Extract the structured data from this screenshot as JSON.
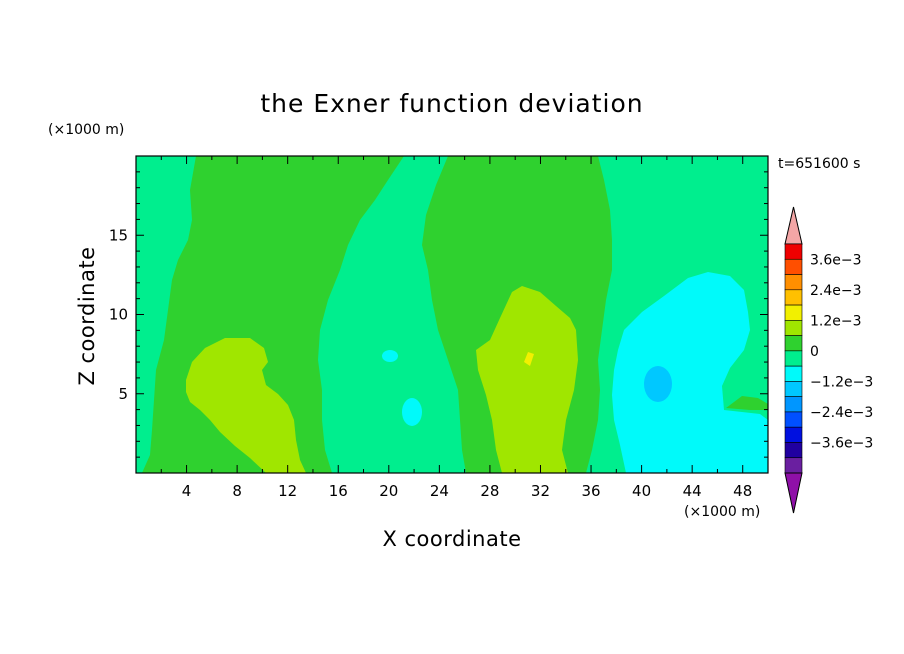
{
  "chart_data": {
    "type": "contour",
    "title": "the Exner function deviation",
    "xlabel": "X coordinate",
    "ylabel": "Z coordinate",
    "x_unit": "(×1000 m)",
    "y_unit": "(×1000 m)",
    "time_label": "t=651600 s",
    "xlim": [
      0,
      50
    ],
    "ylim": [
      0,
      20
    ],
    "xticks": [
      4,
      8,
      12,
      16,
      20,
      24,
      28,
      32,
      36,
      40,
      44,
      48
    ],
    "yticks": [
      5,
      10,
      15
    ],
    "colorbar": {
      "levels": [
        -0.0042,
        -0.0036,
        -0.003,
        -0.0024,
        -0.0018,
        -0.0012,
        -0.0006,
        0,
        0.0006,
        0.0012,
        0.0018,
        0.0024,
        0.003,
        0.0036,
        0.0042
      ],
      "labels": [
        "3.6e−3",
        "2.4e−3",
        "1.2e−3",
        "0",
        "−1.2e−3",
        "−2.4e−3",
        "−3.6e−3"
      ],
      "colors": [
        "#ef0000",
        "#ff4f00",
        "#ff8f00",
        "#ffc000",
        "#f2f000",
        "#a0e600",
        "#2fd12f",
        "#00ee8e",
        "#00fafa",
        "#00c8ff",
        "#0096ff",
        "#0050ff",
        "#0010e0",
        "#2000a0",
        "#6a1fa0"
      ],
      "over_color": "#f4a6a6",
      "under_color": "#8f10a8"
    },
    "regions": [
      {
        "level": "0 to 6e-4",
        "color": "#2fd12f",
        "description": "background band"
      }
    ]
  }
}
